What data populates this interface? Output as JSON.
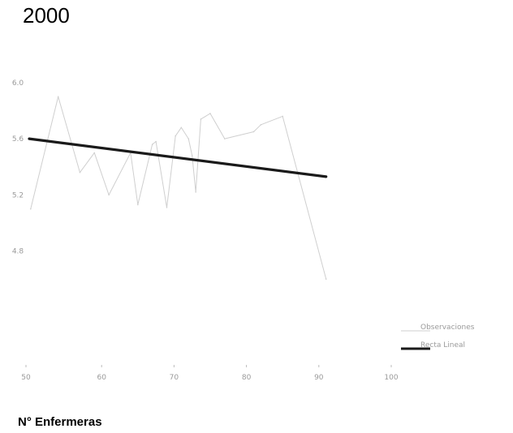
{
  "chart_data": {
    "type": "line",
    "title": "2000",
    "xlabel": "N° Enfermeras",
    "ylabel": "",
    "xlim": [
      50,
      100
    ],
    "ylim": [
      4.0,
      6.3
    ],
    "x_ticks": [
      "50",
      "60",
      "70",
      "80",
      "90",
      "100"
    ],
    "y_ticks": [
      "4.8",
      "5.2",
      "5.6",
      "6.0"
    ],
    "grid": false,
    "legend_position": "right",
    "series": [
      {
        "name": "Observaciones",
        "style": "thin",
        "color": "#cfcfcf",
        "x": [
          50.2,
          54,
          57,
          59,
          61,
          64,
          65,
          67,
          67.5,
          69,
          70.2,
          71,
          72,
          72.5,
          73,
          73.7,
          75,
          77,
          81,
          82,
          85,
          91
        ],
        "y": [
          5.1,
          5.9,
          5.36,
          5.5,
          5.2,
          5.5,
          5.13,
          5.56,
          5.58,
          5.11,
          5.62,
          5.68,
          5.6,
          5.48,
          5.22,
          5.74,
          5.78,
          5.6,
          5.65,
          5.7,
          5.76,
          4.6
        ]
      },
      {
        "name": "Recta Lineal",
        "style": "thick",
        "color": "#1a1a1a",
        "x": [
          50,
          91
        ],
        "y": [
          5.6,
          5.33
        ]
      }
    ]
  }
}
